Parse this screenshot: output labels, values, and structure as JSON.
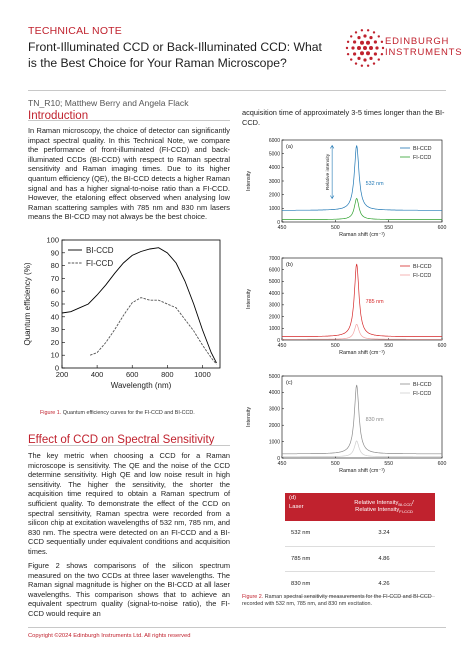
{
  "header": {
    "technical_note": "TECHNICAL NOTE",
    "title": "Front-Illuminated CCD or Back-Illuminated CCD: What is the Best Choice for Your Raman Microscope?",
    "byline": "TN_R10; Matthew Berry and Angela Flack",
    "logo_line1": "EDINBURGH",
    "logo_line2": "INSTRUMENTS"
  },
  "intro": {
    "heading": "Introduction",
    "paragraph": "In Raman microscopy, the choice of detector can significantly impact spectral quality. In this Technical Note, we compare the performance of front-illuminated (FI-CCD) and back-illuminated CCDs (BI-CCD) with respect to Raman spectral sensitivity and Raman imaging times. Due to its higher quantum efficiency (QE), the BI-CCD detects a higher Raman signal and has a higher signal-to-noise ratio than a FI-CCD. However, the etaloning effect observed when analysing low Raman scattering samples with 785 nm and 830 nm lasers means the BI-CCD may not always be the best choice."
  },
  "figure1": {
    "caption_label": "Figure 1.",
    "caption_text": " Quantum efficiency curves for the FI-CCD and BI-CCD."
  },
  "section2": {
    "heading": "Effect of CCD on Spectral Sensitivity",
    "paragraph1": "The key metric when choosing a CCD for a Raman microscope is sensitivity. The QE and the noise of the CCD determine sensitivity. High QE and low noise result in high sensitivity. The higher the sensitivity, the shorter the acquisition time required to obtain a Raman spectrum of sufficient quality. To demonstrate the effect of the CCD on spectral sensitivity, Raman spectra were recorded from a silicon chip at excitation wavelengths of 532 nm, 785 nm, and 830 nm. The spectra were detected on an FI-CCD and a BI-CCD sequentially under equivalent conditions and acquisition times.",
    "paragraph2": "Figure 2 shows comparisons of the silicon spectrum measured on the two CCDs at three laser wavelengths. The Raman signal magnitude is higher on the BI-CCD at all laser wavelengths. This comparison shows that to achieve an equivalent spectrum quality (signal-to-noise ratio), the FI-CCD would require an"
  },
  "right_column": {
    "continued_text": "acquisition time of approximately 3-5 times longer than the BI-CCD."
  },
  "figure2": {
    "caption_label": "Figure 2.",
    "caption_text": " Raman spectral sensitivity measurements for the FI-CCD and BI-CCD recorded with 532 nm, 785 nm, and 830 nm excitation."
  },
  "table": {
    "panel_label": "(d)",
    "header_laser": "Laser",
    "header_ratio_line1": "Relative Intensity",
    "header_ratio_sub1": "BI-CCD",
    "header_ratio_line2": "Relative Intensity",
    "header_ratio_sub2": "FI-CCD",
    "rows": [
      {
        "laser": "532 nm",
        "ratio": "3.24"
      },
      {
        "laser": "785 nm",
        "ratio": "4.86"
      },
      {
        "laser": "830 nm",
        "ratio": "4.26"
      }
    ]
  },
  "footer": {
    "copyright": "Copyright ©2024 Edinburgh Instruments Ltd. All rights reserved"
  },
  "colors": {
    "accent": "#c0222e",
    "bi_532": "#1f77b4",
    "fi_532": "#2ca02c",
    "bi_785": "#d62728",
    "fi_785": "#f3a3a3",
    "bi_830": "#8c8c8c",
    "fi_830": "#cfcfcf"
  },
  "chart_data": [
    {
      "type": "line",
      "xlabel": "Wavelength (nm)",
      "ylabel": "Quantum efficiency (%)",
      "xlim": [
        200,
        1100
      ],
      "ylim": [
        0,
        100
      ],
      "xticks": [
        200,
        400,
        600,
        800,
        1000
      ],
      "yticks": [
        0,
        10,
        20,
        30,
        40,
        50,
        60,
        70,
        80,
        90,
        100
      ],
      "legend": "top-left",
      "series": [
        {
          "name": "BI-CCD",
          "color": "#000000",
          "x": [
            200,
            250,
            300,
            350,
            400,
            450,
            500,
            550,
            600,
            650,
            700,
            750,
            800,
            850,
            900,
            950,
            1000,
            1050,
            1080
          ],
          "y": [
            43,
            44,
            47,
            50,
            57,
            65,
            74,
            82,
            88,
            91,
            93,
            94,
            90,
            82,
            68,
            50,
            30,
            12,
            4
          ]
        },
        {
          "name": "FI-CCD",
          "color": "#555555",
          "x": [
            360,
            400,
            450,
            500,
            550,
            600,
            650,
            700,
            750,
            800,
            850,
            900,
            950,
            1000,
            1050,
            1080
          ],
          "y": [
            10,
            12,
            20,
            30,
            41,
            51,
            55,
            53,
            53,
            50,
            47,
            38,
            29,
            18,
            8,
            3
          ]
        }
      ]
    },
    {
      "type": "line",
      "panel": "(a)",
      "xlabel": "Raman shift (cm⁻¹)",
      "ylabel": "Intensity",
      "xlim": [
        450,
        600
      ],
      "ylim": [
        0,
        6000
      ],
      "xticks": [
        450,
        500,
        550,
        600
      ],
      "yticks": [
        0,
        1000,
        2000,
        3000,
        4000,
        5000,
        6000
      ],
      "annotation_wavelength": "532 nm",
      "annotation_axis": "Relative intensity",
      "peak_x": 520,
      "series": [
        {
          "name": "BI-CCD",
          "color": "#1f77b4",
          "baseline": 850,
          "peak": 5600
        },
        {
          "name": "FI-CCD",
          "color": "#2ca02c",
          "baseline": 180,
          "peak": 1720
        }
      ]
    },
    {
      "type": "line",
      "panel": "(b)",
      "xlabel": "Raman shift (cm⁻¹)",
      "ylabel": "Intensity",
      "xlim": [
        450,
        600
      ],
      "ylim": [
        0,
        7000
      ],
      "xticks": [
        450,
        500,
        550,
        600
      ],
      "yticks": [
        0,
        1000,
        2000,
        3000,
        4000,
        5000,
        6000,
        7000
      ],
      "annotation_wavelength": "785 nm",
      "peak_x": 520,
      "series": [
        {
          "name": "BI-CCD",
          "color": "#d62728",
          "baseline": 280,
          "peak": 6500
        },
        {
          "name": "FI-CCD",
          "color": "#f3a3a3",
          "baseline": 60,
          "peak": 1340
        }
      ]
    },
    {
      "type": "line",
      "panel": "(c)",
      "xlabel": "Raman shift (cm⁻¹)",
      "ylabel": "Intensity",
      "xlim": [
        450,
        600
      ],
      "ylim": [
        0,
        5000
      ],
      "xticks": [
        450,
        500,
        550,
        600
      ],
      "yticks": [
        0,
        1000,
        2000,
        3000,
        4000,
        5000
      ],
      "annotation_wavelength": "830 nm",
      "peak_x": 520,
      "series": [
        {
          "name": "BI-CCD",
          "color": "#8c8c8c",
          "baseline": 250,
          "peak": 4450
        },
        {
          "name": "FI-CCD",
          "color": "#cfcfcf",
          "baseline": 80,
          "peak": 1040
        }
      ]
    }
  ]
}
